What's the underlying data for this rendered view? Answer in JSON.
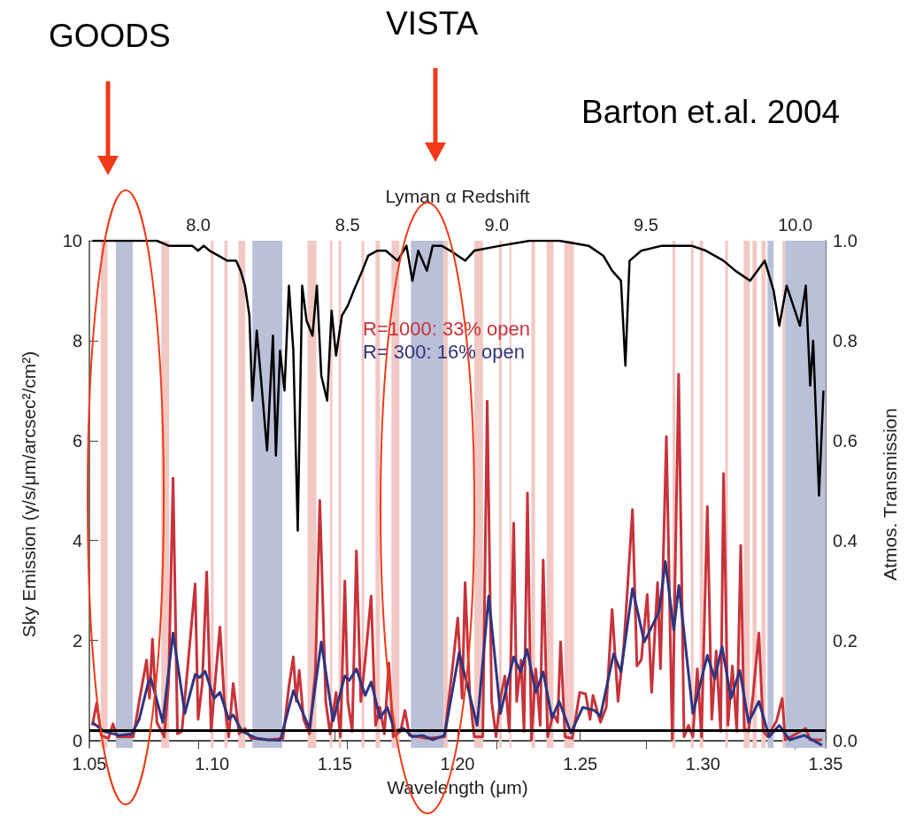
{
  "chart_data": {
    "type": "line",
    "xlabel": "Wavelength (μm)",
    "ylabel": "Sky Emission (γ/s/μm/arcsec²/cm²)",
    "y2label": "Atmos. Transmission",
    "x2label": "Lyman α Redshift",
    "annotations": [
      "GOODS",
      "VISTA",
      "Barton et.al. 2004"
    ],
    "xlim": [
      1.05,
      1.35
    ],
    "xticks": [
      1.05,
      {
        "value": 1.1,
        "label": "1.10"
      },
      1.15,
      {
        "value": 1.2,
        "label": "1.20"
      },
      1.25,
      {
        "value": 1.3,
        "label": "1.30"
      },
      1.35
    ],
    "x2lim": [
      7.635,
      10.102
    ],
    "x2ticks": [
      {
        "value": 8,
        "label": "8.0"
      },
      8.5,
      {
        "value": 9,
        "label": "9.0"
      },
      9.5,
      {
        "value": 10,
        "label": "10.0"
      }
    ],
    "ylim": [
      -0.15,
      10
    ],
    "yticks": [
      0,
      2,
      4,
      6,
      8,
      10
    ],
    "y2lim": [
      -0.015,
      1
    ],
    "y2ticks": [
      {
        "value": 0,
        "label": "0.0"
      },
      0.2,
      0.4,
      0.6,
      0.8,
      {
        "value": 1,
        "label": "1.0"
      }
    ],
    "legend": "top",
    "grid": false,
    "series": [
      {
        "name": "R=1000: 33% open",
        "color": "#c8323a",
        "x": [
          1.0512,
          1.053,
          1.0548,
          1.0578,
          1.0596,
          1.0614,
          1.0679,
          1.0703,
          1.0733,
          1.0745,
          1.0757,
          1.0775,
          1.0805,
          1.0823,
          1.0841,
          1.0859,
          1.0877,
          1.0931,
          1.0943,
          1.096,
          1.0978,
          1.0996,
          1.1014,
          1.1032,
          1.105,
          1.1068,
          1.1086,
          1.111,
          1.1134,
          1.1158,
          1.123,
          1.1289,
          1.1313,
          1.1331,
          1.1343,
          1.1355,
          1.1373,
          1.1397,
          1.1421,
          1.1439,
          1.1463,
          1.1481,
          1.1505,
          1.1523,
          1.1541,
          1.1553,
          1.1571,
          1.1588,
          1.1606,
          1.1624,
          1.1648,
          1.1666,
          1.1684,
          1.1702,
          1.172,
          1.1738,
          1.1768,
          1.1786,
          1.1804,
          1.1875,
          1.1947,
          1.1983,
          1.2001,
          1.2019,
          1.2031,
          1.205,
          1.2068,
          1.2103,
          1.2121,
          1.2139,
          1.2157,
          1.2175,
          1.2193,
          1.2211,
          1.2229,
          1.2241,
          1.2259,
          1.2271,
          1.2285,
          1.2301,
          1.2319,
          1.2337,
          1.2349,
          1.2367,
          1.239,
          1.2408,
          1.242,
          1.2438,
          1.2468,
          1.2498,
          1.2522,
          1.254,
          1.2552,
          1.2582,
          1.2606,
          1.263,
          1.2654,
          1.2678,
          1.2713,
          1.2731,
          1.2749,
          1.2773,
          1.2791,
          1.2815,
          1.2827,
          1.2851,
          1.2875,
          1.2901,
          1.2923,
          1.2941,
          1.2959,
          1.2977,
          1.2994,
          1.3018,
          1.3036,
          1.3054,
          1.3072,
          1.3084,
          1.3102,
          1.312,
          1.3138,
          1.3154,
          1.3168,
          1.3186,
          1.3204,
          1.3228,
          1.3246,
          1.3264,
          1.33,
          1.3323,
          1.3335,
          1.3419,
          1.3437,
          1.3485
        ],
        "values": [
          0.3,
          0.75,
          0.1,
          0.04,
          0.33,
          0.07,
          0.07,
          0.78,
          1.61,
          0.84,
          2.03,
          0.36,
          0.07,
          1.14,
          5.25,
          0.13,
          0.18,
          3.13,
          0.42,
          1.14,
          3.37,
          0.18,
          1.26,
          2.27,
          0.78,
          0.07,
          1.14,
          0.13,
          0.24,
          0.04,
          0.01,
          0.04,
          1.08,
          1.67,
          0.78,
          1.4,
          0.42,
          0.13,
          1.38,
          4.8,
          0.78,
          0.13,
          0.96,
          0.07,
          3.19,
          0.78,
          0.18,
          3.79,
          0.78,
          1.61,
          2.89,
          0.3,
          0.66,
          0.13,
          1.55,
          0.07,
          0.18,
          0.6,
          0.1,
          0.04,
          0.07,
          1.61,
          2.45,
          0.84,
          3.16,
          0.9,
          0.07,
          0.07,
          6.79,
          0.78,
          0.07,
          0.84,
          1.29,
          0.18,
          4.35,
          0.78,
          1.61,
          0.18,
          4.95,
          0.01,
          1.43,
          0.3,
          3.61,
          0.07,
          0.54,
          0.36,
          1.97,
          0.07,
          0.04,
          0.96,
          0.93,
          0.42,
          0.9,
          0.36,
          0.66,
          2.62,
          0.78,
          1.91,
          4.62,
          1.49,
          1.61,
          2.92,
          0.96,
          3.16,
          1.43,
          6.08,
          0.01,
          7.33,
          0.07,
          0.3,
          0.07,
          1.43,
          0.07,
          4.68,
          0.42,
          1.79,
          0.18,
          5.34,
          0.3,
          1.49,
          0.18,
          3.9,
          0.24,
          0.18,
          0.9,
          2.15,
          0.18,
          0.07,
          0.39,
          0.84,
          0.01,
          0.24,
          0.01,
          0.01
        ]
      },
      {
        "name": "R= 300: 16% open",
        "color": "#2e3580",
        "x": [
          1.0512,
          1.056,
          1.062,
          1.0673,
          1.0703,
          1.0739,
          1.0751,
          1.0799,
          1.0841,
          1.0889,
          1.0931,
          1.0949,
          1.0972,
          1.1008,
          1.1032,
          1.1068,
          1.1086,
          1.1122,
          1.1182,
          1.123,
          1.1278,
          1.1331,
          1.1397,
          1.1445,
          1.1493,
          1.1541,
          1.1559,
          1.1588,
          1.1624,
          1.1648,
          1.1684,
          1.1714,
          1.1744,
          1.178,
          1.1816,
          1.1857,
          1.1899,
          1.1947,
          1.2007,
          1.208,
          1.2127,
          1.2175,
          1.2229,
          1.2257,
          1.2283,
          1.2319,
          1.2349,
          1.2385,
          1.2414,
          1.2462,
          1.251,
          1.2558,
          1.2582,
          1.2636,
          1.2666,
          1.2713,
          1.2761,
          1.2821,
          1.2847,
          1.2881,
          1.2902,
          1.2959,
          1.3018,
          1.3048,
          1.3078,
          1.3114,
          1.315,
          1.3186,
          1.3228,
          1.327,
          1.3311,
          1.3353,
          1.3413,
          1.3485
        ],
        "values": [
          0.36,
          0.18,
          0.1,
          0.13,
          0.42,
          1.14,
          1.23,
          0.36,
          2.15,
          0.54,
          1.32,
          1.26,
          1.38,
          0.84,
          0.96,
          0.42,
          0.51,
          0.18,
          0.04,
          0.01,
          0.0,
          0.99,
          0.24,
          1.97,
          0.39,
          1.29,
          1.2,
          1.43,
          0.9,
          1.17,
          0.45,
          0.66,
          0.18,
          0.24,
          0.07,
          0.1,
          0.01,
          0.1,
          1.76,
          0.3,
          2.89,
          0.54,
          1.67,
          1.37,
          1.82,
          0.96,
          1.37,
          0.45,
          0.78,
          0.15,
          0.66,
          0.6,
          0.48,
          1.73,
          1.37,
          3.04,
          1.97,
          2.57,
          3.58,
          2.21,
          3.1,
          0.54,
          1.7,
          1.23,
          1.88,
          0.84,
          1.4,
          0.36,
          0.78,
          0.07,
          0.3,
          0.01,
          0.1,
          -0.1
        ]
      },
      {
        "color": "#000000",
        "axis": "y2",
        "x": [
          1.0512,
          1.0614,
          1.0703,
          1.0775,
          1.0823,
          1.0871,
          1.0919,
          1.0943,
          1.0966,
          1.099,
          1.1026,
          1.1062,
          1.1098,
          1.1116,
          1.1134,
          1.1152,
          1.1164,
          1.1182,
          1.12,
          1.1224,
          1.1248,
          1.126,
          1.1277,
          1.1295,
          1.1313,
          1.1331,
          1.1349,
          1.1367,
          1.1385,
          1.1409,
          1.1427,
          1.1445,
          1.1469,
          1.1487,
          1.1505,
          1.1529,
          1.1553,
          1.1577,
          1.1612,
          1.1636,
          1.1672,
          1.1708,
          1.1756,
          1.1792,
          1.1816,
          1.184,
          1.1875,
          1.1899,
          1.1935,
          1.1971,
          1.2031,
          1.2068,
          1.2175,
          1.2295,
          1.2414,
          1.2534,
          1.2594,
          1.263,
          1.2666,
          1.2684,
          1.2701,
          1.2749,
          1.2833,
          1.2953,
          1.3012,
          1.3048,
          1.3084,
          1.3132,
          1.3192,
          1.3252,
          1.3288,
          1.3311,
          1.3341,
          1.3395,
          1.3419,
          1.3437,
          1.3449,
          1.3473,
          1.3491
        ],
        "values": [
          1.0,
          1.0,
          1.0,
          1.0,
          0.99,
          0.99,
          0.99,
          0.98,
          0.99,
          0.98,
          0.97,
          0.96,
          0.96,
          0.94,
          0.91,
          0.85,
          0.68,
          0.82,
          0.72,
          0.58,
          0.81,
          0.57,
          0.78,
          0.7,
          0.91,
          0.78,
          0.42,
          0.91,
          0.84,
          0.81,
          0.91,
          0.73,
          0.68,
          0.86,
          0.77,
          0.85,
          0.87,
          0.9,
          0.94,
          0.97,
          0.98,
          0.98,
          0.96,
          0.99,
          0.92,
          0.98,
          0.94,
          0.99,
          0.99,
          0.98,
          0.96,
          0.98,
          0.99,
          1.0,
          1.0,
          0.99,
          0.97,
          0.94,
          0.92,
          0.75,
          0.96,
          0.98,
          0.99,
          0.99,
          0.98,
          0.97,
          0.96,
          0.94,
          0.92,
          0.96,
          0.9,
          0.83,
          0.91,
          0.83,
          0.91,
          0.71,
          0.8,
          0.49,
          0.7
        ]
      }
    ],
    "ref_lines": [
      {
        "axis": "y",
        "value": 0.2,
        "color": "#000000"
      }
    ],
    "bands": [
      {
        "axis": "x",
        "from": 1.0546,
        "to": 1.0574,
        "color": "#f2c8c4"
      },
      {
        "axis": "x",
        "from": 1.0608,
        "to": 1.0677,
        "color": "#bac0d8"
      },
      {
        "axis": "x",
        "from": 1.0793,
        "to": 1.0825,
        "color": "#f2c8c4"
      },
      {
        "axis": "x",
        "from": 1.0995,
        "to": 1.1006,
        "color": "#f2c8c4"
      },
      {
        "axis": "x",
        "from": 1.105,
        "to": 1.1063,
        "color": "#f2c8c4"
      },
      {
        "axis": "x",
        "from": 1.1107,
        "to": 1.1135,
        "color": "#f2c8c4"
      },
      {
        "axis": "x",
        "from": 1.1164,
        "to": 1.1286,
        "color": "#bac0d8"
      },
      {
        "axis": "x",
        "from": 1.1389,
        "to": 1.1425,
        "color": "#f2c8c4"
      },
      {
        "axis": "x",
        "from": 1.148,
        "to": 1.149,
        "color": "#f2c8c4"
      },
      {
        "axis": "x",
        "from": 1.1515,
        "to": 1.1526,
        "color": "#f2c8c4"
      },
      {
        "axis": "x",
        "from": 1.1609,
        "to": 1.162,
        "color": "#f2c8c4"
      },
      {
        "axis": "x",
        "from": 1.1666,
        "to": 1.1684,
        "color": "#f2c8c4"
      },
      {
        "axis": "x",
        "from": 1.1731,
        "to": 1.1763,
        "color": "#f2c8c4"
      },
      {
        "axis": "x",
        "from": 1.181,
        "to": 1.1943,
        "color": "#bac0d8"
      },
      {
        "axis": "x",
        "from": 1.1943,
        "to": 1.196,
        "color": "#f2c8c4"
      },
      {
        "axis": "x",
        "from": 1.2068,
        "to": 1.2104,
        "color": "#f2c8c4"
      },
      {
        "axis": "x",
        "from": 1.2169,
        "to": 1.218,
        "color": "#f2c8c4"
      },
      {
        "axis": "x",
        "from": 1.2212,
        "to": 1.2219,
        "color": "#f2c8c4"
      },
      {
        "axis": "x",
        "from": 1.2301,
        "to": 1.2316,
        "color": "#f2c8c4"
      },
      {
        "axis": "x",
        "from": 1.2363,
        "to": 1.2391,
        "color": "#f2c8c4"
      },
      {
        "axis": "x",
        "from": 1.2435,
        "to": 1.2474,
        "color": "#f2c8c4"
      },
      {
        "axis": "x",
        "from": 1.2876,
        "to": 1.2887,
        "color": "#f2c8c4"
      },
      {
        "axis": "x",
        "from": 1.2951,
        "to": 1.2962,
        "color": "#f2c8c4"
      },
      {
        "axis": "x",
        "from": 1.2987,
        "to": 1.3001,
        "color": "#f2c8c4"
      },
      {
        "axis": "x",
        "from": 1.3091,
        "to": 1.3102,
        "color": "#f2c8c4"
      },
      {
        "axis": "x",
        "from": 1.3166,
        "to": 1.3191,
        "color": "#f2c8c4"
      },
      {
        "axis": "x",
        "from": 1.3202,
        "to": 1.322,
        "color": "#f2c8c4"
      },
      {
        "axis": "x",
        "from": 1.3238,
        "to": 1.3256,
        "color": "#f2c8c4"
      },
      {
        "axis": "x",
        "from": 1.3263,
        "to": 1.3288,
        "color": "#bac0d8"
      },
      {
        "axis": "x",
        "from": 1.3324,
        "to": 1.3335,
        "color": "#f2c8c4"
      },
      {
        "axis": "x",
        "from": 1.3335,
        "to": 1.35,
        "color": "#bac0d8"
      }
    ]
  }
}
